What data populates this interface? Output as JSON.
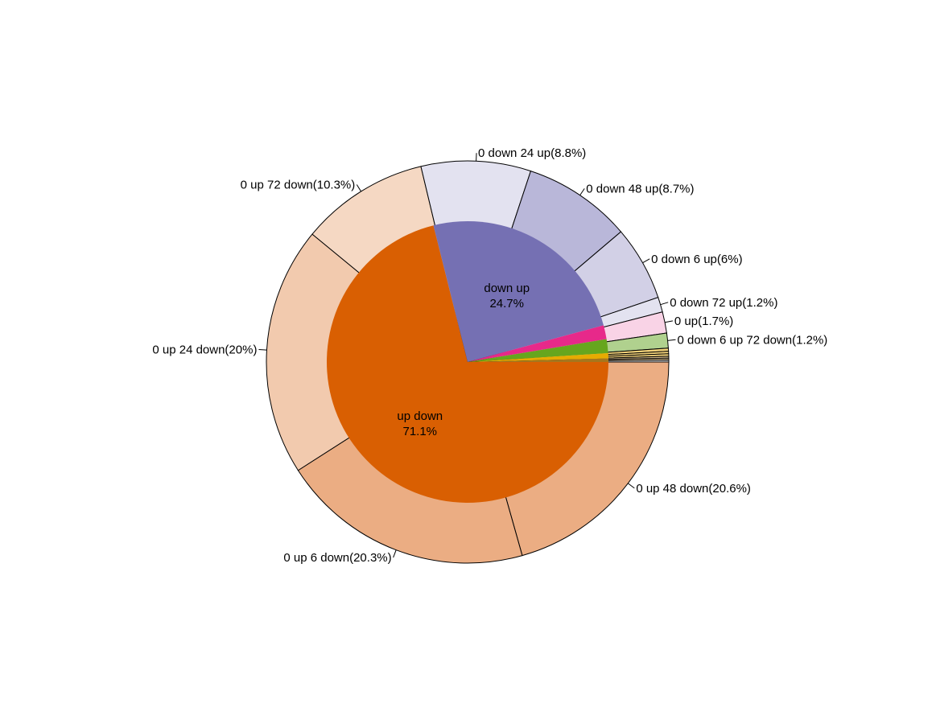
{
  "chart_data": {
    "type": "pie",
    "title": "",
    "inner": {
      "slices": [
        {
          "id": "up_down",
          "name": "up down",
          "percent_label": "71.1%",
          "value": 71.1,
          "color": "#D95F02"
        },
        {
          "id": "down_up",
          "name": "down up",
          "percent_label": "24.7%",
          "value": 24.7,
          "color": "#7570B3"
        },
        {
          "id": "inner_pink",
          "name": "",
          "percent_label": "",
          "value": 1.6,
          "color": "#E7298A"
        },
        {
          "id": "inner_green",
          "name": "",
          "percent_label": "",
          "value": 1.6,
          "color": "#66A61E"
        },
        {
          "id": "inner_yellow",
          "name": "",
          "percent_label": "",
          "value": 0.6,
          "color": "#E6AB02"
        },
        {
          "id": "inner_brown",
          "name": "",
          "percent_label": "",
          "value": 0.4,
          "color": "#A6761D"
        }
      ]
    },
    "outer": {
      "slices": [
        {
          "parent": "up_down",
          "label": "0 up 48 down(20.6%)",
          "value": 20.6,
          "color": "#EBAD83"
        },
        {
          "parent": "up_down",
          "label": "0 up 6 down(20.3%)",
          "value": 20.3,
          "color": "#EBAD83"
        },
        {
          "parent": "up_down",
          "label": "0 up 24 down(20%)",
          "value": 20.0,
          "color": "#F2CAAE"
        },
        {
          "parent": "up_down",
          "label": "0 up 72 down(10.3%)",
          "value": 10.3,
          "color": "#F5D8C3"
        },
        {
          "parent": "down_up",
          "label": "0 down 24 up(8.8%)",
          "value": 8.8,
          "color": "#E3E2F0"
        },
        {
          "parent": "down_up",
          "label": "0 down 48 up(8.7%)",
          "value": 8.7,
          "color": "#B9B7D9"
        },
        {
          "parent": "down_up",
          "label": "0 down 6 up(6%)",
          "value": 6.0,
          "color": "#D2D0E6"
        },
        {
          "parent": "down_up",
          "label": "0 down 72 up(1.2%)",
          "value": 1.2,
          "color": "#E3E2F0"
        },
        {
          "parent": "inner_pink",
          "label": "0 up(1.7%)",
          "value": 1.7,
          "color": "#F9D3E6"
        },
        {
          "parent": "inner_green",
          "label": "0 down 6 up 72 down(1.2%)",
          "value": 1.2,
          "color": "#B0D18E"
        },
        {
          "parent": "inner_yellow",
          "label": "",
          "value": 0.25,
          "color": "#F2D27A"
        },
        {
          "parent": "inner_yellow",
          "label": "",
          "value": 0.2,
          "color": "#F2D27A"
        },
        {
          "parent": "inner_yellow",
          "label": "",
          "value": 0.2,
          "color": "#F2D27A"
        },
        {
          "parent": "inner_brown",
          "label": "",
          "value": 0.15,
          "color": "#D2B98B"
        },
        {
          "parent": "inner_brown",
          "label": "",
          "value": 0.15,
          "color": "#D2B98B"
        },
        {
          "parent": "inner_brown",
          "label": "",
          "value": 0.15,
          "color": "#E6E6E6"
        }
      ]
    },
    "direction": "clockwise",
    "start": "3 o'clock, counter-clockwise in angle terms",
    "legend": "none"
  }
}
